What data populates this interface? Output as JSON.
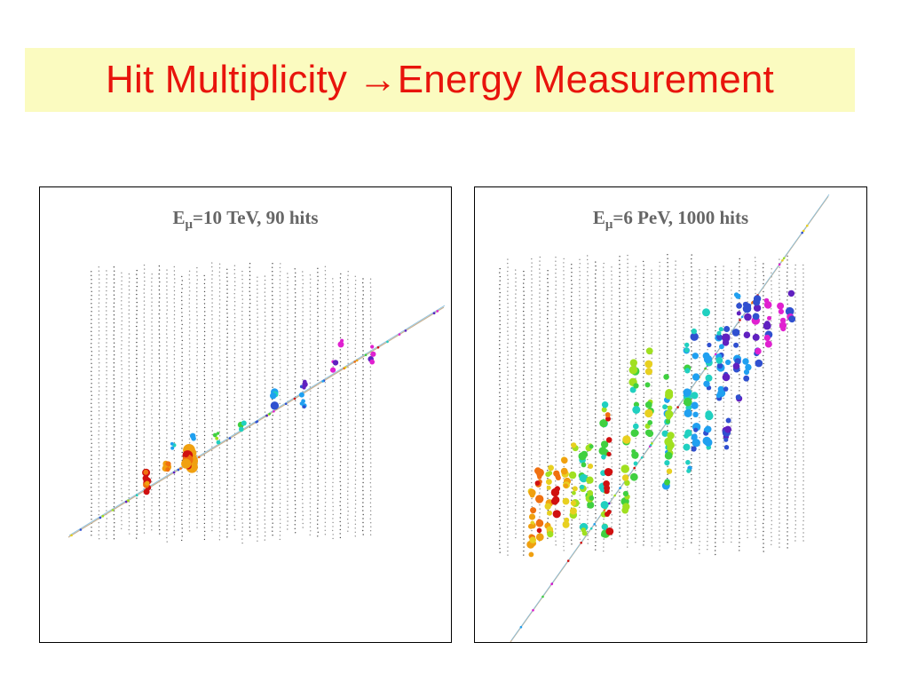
{
  "slide": {
    "title": "Hit Multiplicity →Energy Measurement"
  },
  "panels": [
    {
      "caption_prefix": "E",
      "caption_sub": "μ",
      "caption_suffix": "=10 TeV, 90 hits"
    },
    {
      "caption_prefix": "E",
      "caption_sub": "μ",
      "caption_suffix": "=6 PeV, 1000 hits"
    }
  ],
  "colors": {
    "title_text": "#e8140c",
    "title_background": "#fbfbc0",
    "caption_text": "#666666",
    "hit_palette": [
      "#d01010",
      "#f07010",
      "#f0a010",
      "#e8d020",
      "#a0e020",
      "#40d040",
      "#20d0c0",
      "#20a0f0",
      "#3050d0",
      "#6020c0",
      "#e020d0"
    ]
  }
}
